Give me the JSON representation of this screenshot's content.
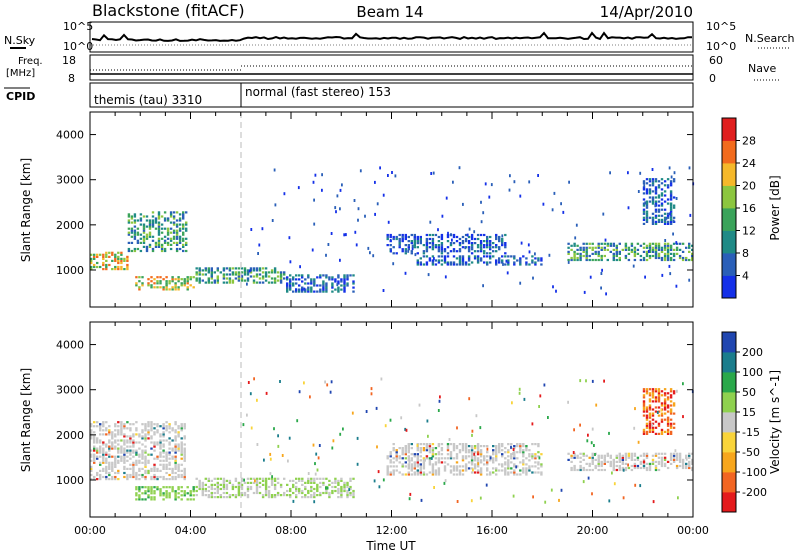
{
  "header": {
    "station": "Blackstone (fitACF)",
    "beam": "Beam 14",
    "date": "14/Apr/2010"
  },
  "side_labels": {
    "nsky": "N.Sky",
    "nsearch": "N.Search",
    "freq": "Freq.",
    "freq_unit": "[MHz]",
    "nave": "Nave",
    "cpid": "CPID"
  },
  "strip_ticks": {
    "noise_left": [
      "10^5",
      "10^0"
    ],
    "noise_right": [
      "10^5",
      "10^0"
    ],
    "freq_left": [
      "18",
      "8"
    ],
    "freq_right": [
      "60",
      "0"
    ]
  },
  "cpid_segments": [
    {
      "name": "themis (tau) 3310",
      "start_h": 0,
      "end_h": 6
    },
    {
      "name": "normal (fast stereo) 153",
      "start_h": 6,
      "end_h": 24
    }
  ],
  "colors": {
    "power": [
      "#1430e8",
      "#2a5fb8",
      "#1f8a86",
      "#3aa35a",
      "#8cc63f",
      "#f5b82a",
      "#f26b1d",
      "#e01f1f"
    ],
    "velocity": [
      "#e41a1c",
      "#f26522",
      "#f7a61c",
      "#f9d43a",
      "#c8c8c8",
      "#8fd14f",
      "#2aa84a",
      "#1b7d8c",
      "#2046b0"
    ]
  },
  "chart_data": [
    {
      "type": "heatmap",
      "ylabel": "Slant Range [km]",
      "xlabel": "",
      "x_unit": "hours UT",
      "xlim": [
        0,
        24
      ],
      "ylim": [
        180,
        4500
      ],
      "yticks": [
        1000,
        2000,
        3000,
        4000
      ],
      "colorbar_label": "Power [dB]",
      "colorbar_range": [
        0,
        32
      ],
      "colorbar_ticks": [
        4,
        8,
        12,
        16,
        20,
        24,
        28
      ],
      "echo_regions": [
        {
          "t_start": 0.0,
          "t_end": 1.5,
          "r_start": 1000,
          "r_end": 1400,
          "level": "high"
        },
        {
          "t_start": 1.5,
          "t_end": 3.8,
          "r_start": 1400,
          "r_end": 2300,
          "level": "medium"
        },
        {
          "t_start": 1.8,
          "t_end": 4.2,
          "r_start": 550,
          "r_end": 850,
          "level": "high"
        },
        {
          "t_start": 4.2,
          "t_end": 7.8,
          "r_start": 700,
          "r_end": 1050,
          "level": "medium"
        },
        {
          "t_start": 7.8,
          "t_end": 10.5,
          "r_start": 500,
          "r_end": 900,
          "level": "low"
        },
        {
          "t_start": 11.8,
          "t_end": 16.5,
          "r_start": 1350,
          "r_end": 1800,
          "level": "low"
        },
        {
          "t_start": 13.0,
          "t_end": 18.0,
          "r_start": 1100,
          "r_end": 1300,
          "level": "low"
        },
        {
          "t_start": 19.0,
          "t_end": 24.0,
          "r_start": 1200,
          "r_end": 1600,
          "level": "medium"
        },
        {
          "t_start": 22.0,
          "t_end": 23.3,
          "r_start": 2000,
          "r_end": 3000,
          "level": "low"
        }
      ]
    },
    {
      "type": "heatmap",
      "ylabel": "Slant Range [km]",
      "xlabel": "Time UT",
      "x_unit": "hours UT",
      "xlim": [
        0,
        24
      ],
      "ylim": [
        180,
        4500
      ],
      "yticks": [
        1000,
        2000,
        3000,
        4000
      ],
      "xticks": [
        "00:00",
        "04:00",
        "08:00",
        "12:00",
        "16:00",
        "20:00",
        "00:00"
      ],
      "colorbar_label": "Velocity [m s^-1]",
      "colorbar_range": [
        -250,
        250
      ],
      "colorbar_ticks": [
        -200,
        -100,
        -50,
        -15,
        15,
        50,
        100,
        200
      ],
      "echo_regions": [
        {
          "t_start": 0.0,
          "t_end": 3.8,
          "r_start": 1000,
          "r_end": 2300,
          "level": "ground"
        },
        {
          "t_start": 1.8,
          "t_end": 4.2,
          "r_start": 550,
          "r_end": 850,
          "level": "positive"
        },
        {
          "t_start": 4.2,
          "t_end": 10.5,
          "r_start": 600,
          "r_end": 1050,
          "level": "mixed"
        },
        {
          "t_start": 11.8,
          "t_end": 18.0,
          "r_start": 1100,
          "r_end": 1800,
          "level": "ground"
        },
        {
          "t_start": 19.0,
          "t_end": 24.0,
          "r_start": 1200,
          "r_end": 1600,
          "level": "ground"
        },
        {
          "t_start": 22.0,
          "t_end": 23.3,
          "r_start": 2000,
          "r_end": 3000,
          "level": "negative"
        }
      ]
    }
  ]
}
